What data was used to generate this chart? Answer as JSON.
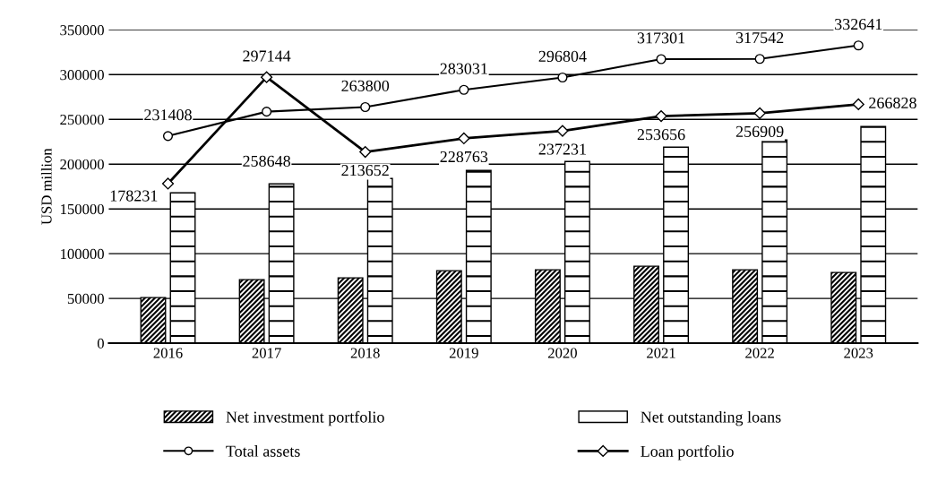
{
  "chart_data": {
    "type": "bar",
    "ylabel": "USD million",
    "categories": [
      "2016",
      "2017",
      "2018",
      "2019",
      "2020",
      "2021",
      "2022",
      "2023"
    ],
    "series": [
      {
        "name": "Net investment portfolio",
        "color": "#000000",
        "values": [
          51000,
          71000,
          73000,
          81000,
          82000,
          86000,
          82000,
          79000
        ]
      },
      {
        "name": "Net outstanding loans",
        "color": "#000000",
        "values": [
          168000,
          178000,
          184000,
          193000,
          203000,
          219000,
          227000,
          242000
        ]
      },
      {
        "name": "Total assets",
        "type": "line",
        "color": "#000000",
        "marker": "circle",
        "data_labels": true,
        "values": [
          231408,
          258648,
          263800,
          283031,
          296804,
          317301,
          317542,
          332641
        ]
      },
      {
        "name": "Loan portfolio",
        "type": "line",
        "color": "#000000",
        "marker": "diamond",
        "data_labels": true,
        "values": [
          178231,
          297144,
          213652,
          228763,
          237231,
          253656,
          256909,
          266828
        ]
      }
    ],
    "ylim": [
      0,
      350000
    ],
    "yticks": [
      0,
      50000,
      100000,
      150000,
      200000,
      250000,
      300000,
      350000
    ],
    "grid": "y",
    "legend": "bottom"
  }
}
